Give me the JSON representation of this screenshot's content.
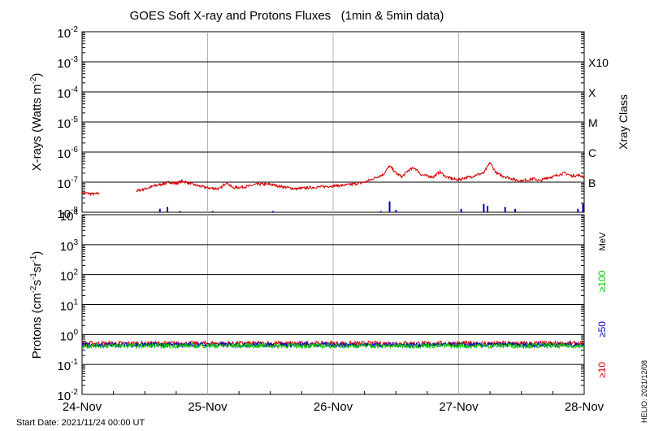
{
  "chart_data": {
    "type": "line",
    "title": "GOES Soft X-ray and Protons Fluxes   (1min & 5min data)",
    "start_label": "Start Date: 2021/11/24 00:00 UT",
    "credit": "HELIO: 2021/12/08",
    "x_ticks": [
      "24-Nov",
      "25-Nov",
      "26-Nov",
      "27-Nov",
      "28-Nov"
    ],
    "x_range_days": [
      0,
      4
    ],
    "grid": true,
    "xray_panel": {
      "ylabel_prefix": "X-rays (Watts m",
      "ylabel_exp": "-2",
      "ylabel_suffix": ")",
      "ylim_log10": [
        -8,
        -2
      ],
      "yticks": [
        {
          "exp": "-2"
        },
        {
          "exp": "-3"
        },
        {
          "exp": "-4"
        },
        {
          "exp": "-5"
        },
        {
          "exp": "-6"
        },
        {
          "exp": "-7"
        },
        {
          "exp": "-8"
        }
      ],
      "class_label": "Xray Class",
      "classes": [
        {
          "label": "X10",
          "log10": -3
        },
        {
          "label": "X",
          "log10": -4
        },
        {
          "label": "M",
          "log10": -5
        },
        {
          "label": "C",
          "log10": -6
        },
        {
          "label": "B",
          "log10": -7
        }
      ],
      "series": [
        {
          "color": "#d40000",
          "gaps": [
            [
              0.14,
              0.43
            ]
          ],
          "x": [
            0.0,
            0.05,
            0.1,
            0.14,
            0.43,
            0.5,
            0.6,
            0.7,
            0.75,
            0.8,
            0.9,
            1.0,
            1.1,
            1.15,
            1.2,
            1.3,
            1.4,
            1.5,
            1.6,
            1.7,
            1.8,
            1.9,
            2.0,
            2.1,
            2.2,
            2.25,
            2.3,
            2.35,
            2.4,
            2.45,
            2.5,
            2.55,
            2.6,
            2.65,
            2.7,
            2.75,
            2.8,
            2.85,
            2.9,
            2.95,
            3.0,
            3.05,
            3.1,
            3.15,
            3.2,
            3.25,
            3.3,
            3.35,
            3.4,
            3.45,
            3.5,
            3.55,
            3.6,
            3.65,
            3.7,
            3.75,
            3.8,
            3.85,
            3.9,
            3.95,
            4.0
          ],
          "y": [
            4.5e-08,
            4.2e-08,
            4e-08,
            4.3e-08,
            5e-08,
            6e-08,
            8e-08,
            1e-07,
            9e-08,
            1.1e-07,
            8e-08,
            6.5e-08,
            6e-08,
            1e-07,
            6.5e-08,
            7e-08,
            8.5e-08,
            8.5e-08,
            7e-08,
            6e-08,
            6.5e-08,
            7e-08,
            7.5e-08,
            8e-08,
            9e-08,
            1e-07,
            1.2e-07,
            1.5e-07,
            1.8e-07,
            3.5e-07,
            2e-07,
            1.5e-07,
            2.5e-07,
            3e-07,
            1.8e-07,
            1.6e-07,
            1.5e-07,
            2.2e-07,
            1.5e-07,
            1.3e-07,
            1.2e-07,
            1.4e-07,
            1.5e-07,
            1.8e-07,
            2e-07,
            4.5e-07,
            2e-07,
            1.6e-07,
            1.4e-07,
            1.2e-07,
            1.1e-07,
            1.2e-07,
            1.3e-07,
            1.1e-07,
            1.4e-07,
            1.5e-07,
            1.8e-07,
            2e-07,
            1.6e-07,
            1.7e-07,
            1.5e-07
          ]
        },
        {
          "color": "#0000c8",
          "spikes": [
            {
              "x": 0.62,
              "y": 1.3e-08
            },
            {
              "x": 0.68,
              "y": 1.5e-08
            },
            {
              "x": 0.78,
              "y": 1.1e-08
            },
            {
              "x": 1.04,
              "y": 1.1e-08
            },
            {
              "x": 1.52,
              "y": 1.1e-08
            },
            {
              "x": 2.38,
              "y": 1.1e-08
            },
            {
              "x": 2.45,
              "y": 2.3e-08
            },
            {
              "x": 2.5,
              "y": 1.2e-08
            },
            {
              "x": 3.02,
              "y": 1.3e-08
            },
            {
              "x": 3.2,
              "y": 1.9e-08
            },
            {
              "x": 3.23,
              "y": 1.6e-08
            },
            {
              "x": 3.37,
              "y": 1.5e-08
            },
            {
              "x": 3.45,
              "y": 1.3e-08
            },
            {
              "x": 3.95,
              "y": 1.3e-08
            },
            {
              "x": 3.99,
              "y": 1.9e-08
            }
          ]
        }
      ]
    },
    "proton_panel": {
      "ylabel_prefix": "Protons (cm",
      "ylabel_exp1": "-2",
      "ylabel_mid1": "s",
      "ylabel_exp2": "-1",
      "ylabel_mid2": "sr",
      "ylabel_exp3": "-1",
      "ylabel_suffix": ")",
      "ylim_log10": [
        -2,
        4
      ],
      "yticks": [
        {
          "exp": "4"
        },
        {
          "exp": "3"
        },
        {
          "exp": "2"
        },
        {
          "exp": "1"
        },
        {
          "exp": "0"
        },
        {
          "exp": "-1"
        },
        {
          "exp": "-2"
        }
      ],
      "dashed_threshold": 10,
      "mev_label": "MeV",
      "channels": [
        {
          "label": "≥100",
          "color": "#00c800"
        },
        {
          "label": "≥50",
          "color": "#0000c8"
        },
        {
          "label": "≥10",
          "color": "#d40000"
        }
      ],
      "series": [
        {
          "channel": "≥10",
          "color": "#d40000",
          "level": 0.5
        },
        {
          "channel": "≥50",
          "color": "#0000c8",
          "level": 0.45
        },
        {
          "channel": "≥100",
          "color": "#00c800",
          "level": 0.42
        }
      ]
    }
  }
}
